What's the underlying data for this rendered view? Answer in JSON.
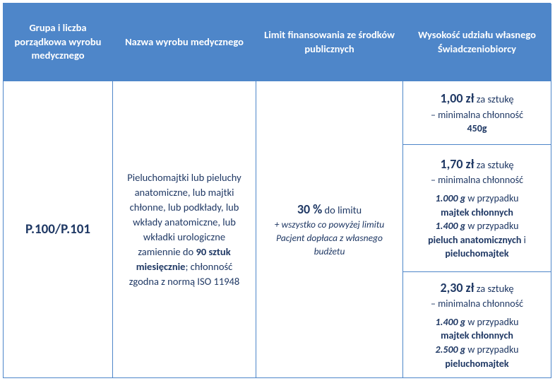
{
  "headers": {
    "col1": "Grupa i liczba porządkowa wyrobu medycznego",
    "col2": "Nazwa wyrobu medycznego",
    "col3": "Limit finansowania ze środków publicznych",
    "col4": "Wysokość udziału własnego Świadczeniobiorcy"
  },
  "col1": {
    "code": "P.100/P.101"
  },
  "col2": {
    "pre": "Pieluchomajtki lub pieluchy anatomiczne, lub majtki chłonne, lub podkłady, lub wkłady anatomiczne, lub wkładki urologiczne zamiennie do ",
    "bold1": "90 sztuk miesięcznie",
    "mid": "; chłonność zgodna z normą ISO 11948"
  },
  "limits": [
    {
      "price": "1,00 zł",
      "unit": " za sztukę",
      "line1a": "– minimalna chłonność",
      "grams": "450g"
    },
    {
      "price": "1,70 zł",
      "unit": " za sztukę",
      "line1a": "– minimalna chłonność",
      "g1": "1.000 g",
      "t1": " w przypadku",
      "b1": "majtek chłonnych",
      "g2": "1.400 g",
      "t2": " w przypadku",
      "b2a": "pieluch anatomicznych",
      "b2mid": " i ",
      "b2b": "pieluchomajtek"
    },
    {
      "price": "2,30 zł",
      "unit": " za sztukę",
      "line1a": "– minimalna chłonność",
      "g1": "1.400 g",
      "t1": " w przypadku",
      "b1": "majtek chłonnych",
      "g2": "2.500 g",
      "t2": " w przypadku",
      "b2": "pieluchomajtek"
    }
  ],
  "col4": {
    "pct": "30 %",
    "after": " do limitu",
    "note": "+ wszystko co powyżej limitu Pacjent dopłaca z własnego budżetu"
  }
}
